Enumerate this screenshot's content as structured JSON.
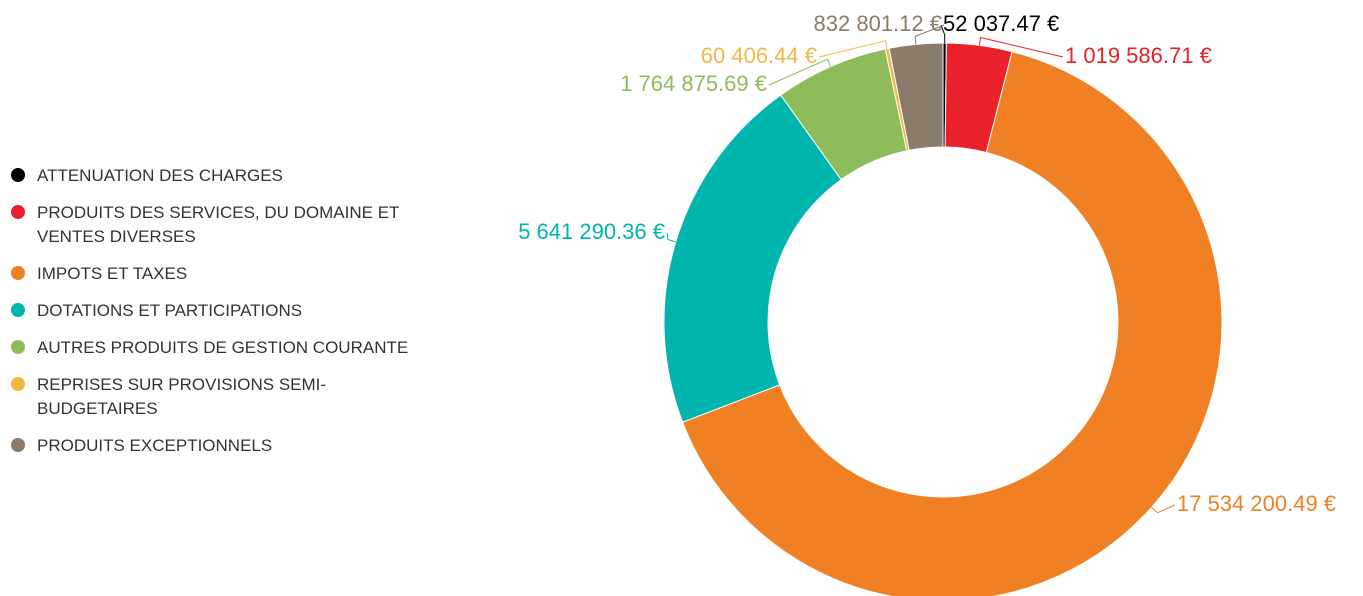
{
  "chart_data": {
    "type": "donut",
    "categories": [
      "ATTENUATION DES CHARGES",
      "PRODUITS DES SERVICES, DU DOMAINE ET VENTES DIVERSES",
      "IMPOTS ET TAXES",
      "DOTATIONS ET PARTICIPATIONS",
      "AUTRES PRODUITS DE GESTION COURANTE",
      "REPRISES SUR PROVISIONS SEMI-BUDGETAIRES",
      "PRODUITS EXCEPTIONNELS"
    ],
    "values": [
      52037.47,
      1019586.71,
      17534200.49,
      5641290.36,
      1764875.69,
      60406.44,
      832801.12
    ],
    "value_labels": [
      "52 037.47 €",
      "1 019 586.71 €",
      "17 534 200.49 €",
      "5 641 290.36 €",
      "1 764 875.69 €",
      "60 406.44 €",
      "832 801.12 €"
    ],
    "colors": [
      "#000000",
      "#e8212a",
      "#f08024",
      "#00b5ad",
      "#8fbc5a",
      "#f0b849",
      "#8b7b6b"
    ],
    "legend": "left"
  }
}
